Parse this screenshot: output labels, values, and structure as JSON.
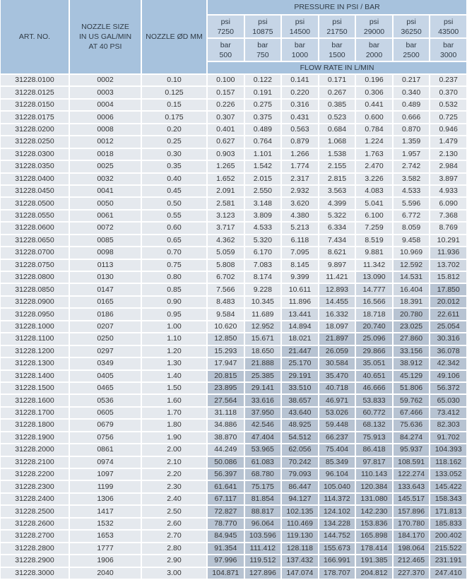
{
  "header": {
    "art_no": "ART. NO.",
    "nozzle_size": "NOZZLE SIZE IN US GAL/MIN AT 40 PSI",
    "nozzle_diameter": "NOZZLE ØD MM",
    "pressure": "PRESSURE IN PSI / BAR",
    "flow_rate": "FLOW RATE IN L/MIN",
    "psi_label": "psi",
    "bar_label": "bar",
    "psi_values": [
      "7250",
      "10875",
      "14500",
      "21750",
      "29000",
      "36250",
      "43500"
    ],
    "bar_values": [
      "500",
      "750",
      "1000",
      "1500",
      "2000",
      "2500",
      "3000"
    ]
  },
  "rows": [
    [
      "31228.0100",
      "0002",
      "0.10",
      "0.100",
      "0.122",
      "0.141",
      "0.171",
      "0.196",
      "0.217",
      "0.237"
    ],
    [
      "31228.0125",
      "0003",
      "0.125",
      "0.157",
      "0.191",
      "0.220",
      "0.267",
      "0.306",
      "0.340",
      "0.370"
    ],
    [
      "31228.0150",
      "0004",
      "0.15",
      "0.226",
      "0.275",
      "0.316",
      "0.385",
      "0.441",
      "0.489",
      "0.532"
    ],
    [
      "31228.0175",
      "0006",
      "0.175",
      "0.307",
      "0.375",
      "0.431",
      "0.523",
      "0.600",
      "0.666",
      "0.725"
    ],
    [
      "31228.0200",
      "0008",
      "0.20",
      "0.401",
      "0.489",
      "0.563",
      "0.684",
      "0.784",
      "0.870",
      "0.946"
    ],
    [
      "31228.0250",
      "0012",
      "0.25",
      "0.627",
      "0.764",
      "0.879",
      "1.068",
      "1.224",
      "1.359",
      "1.479"
    ],
    [
      "31228.0300",
      "0018",
      "0.30",
      "0.903",
      "1.101",
      "1.266",
      "1.538",
      "1.763",
      "1.957",
      "2.130"
    ],
    [
      "31228.0350",
      "0025",
      "0.35",
      "1.265",
      "1.542",
      "1.774",
      "2.155",
      "2.470",
      "2.742",
      "2.984"
    ],
    [
      "31228.0400",
      "0032",
      "0.40",
      "1.652",
      "2.015",
      "2.317",
      "2.815",
      "3.226",
      "3.582",
      "3.897"
    ],
    [
      "31228.0450",
      "0041",
      "0.45",
      "2.091",
      "2.550",
      "2.932",
      "3.563",
      "4.083",
      "4.533",
      "4.933"
    ],
    [
      "31228.0500",
      "0050",
      "0.50",
      "2.581",
      "3.148",
      "3.620",
      "4.399",
      "5.041",
      "5.596",
      "6.090"
    ],
    [
      "31228.0550",
      "0061",
      "0.55",
      "3.123",
      "3.809",
      "4.380",
      "5.322",
      "6.100",
      "6.772",
      "7.368"
    ],
    [
      "31228.0600",
      "0072",
      "0.60",
      "3.717",
      "4.533",
      "5.213",
      "6.334",
      "7.259",
      "8.059",
      "8.769"
    ],
    [
      "31228.0650",
      "0085",
      "0.65",
      "4.362",
      "5.320",
      "6.118",
      "7.434",
      "8.519",
      "9.458",
      "10.291"
    ],
    [
      "31228.0700",
      "0098",
      "0.70",
      "5.059",
      "6.170",
      "7.095",
      "8.621",
      "9.881",
      "10.969",
      "11.936"
    ],
    [
      "31228.0750",
      "0113",
      "0.75",
      "5.808",
      "7.083",
      "8.145",
      "9.897",
      "11.342",
      "12.592",
      "13.702"
    ],
    [
      "31228.0800",
      "0130",
      "0.80",
      "6.702",
      "8.174",
      "9.399",
      "11.421",
      "13.090",
      "14.531",
      "15.812"
    ],
    [
      "31228.0850",
      "0147",
      "0.85",
      "7.566",
      "9.228",
      "10.611",
      "12.893",
      "14.777",
      "16.404",
      "17.850"
    ],
    [
      "31228.0900",
      "0165",
      "0.90",
      "8.483",
      "10.345",
      "11.896",
      "14.455",
      "16.566",
      "18.391",
      "20.012"
    ],
    [
      "31228.0950",
      "0186",
      "0.95",
      "9.584",
      "11.689",
      "13.441",
      "16.332",
      "18.718",
      "20.780",
      "22.611"
    ],
    [
      "31228.1000",
      "0207",
      "1.00",
      "10.620",
      "12.952",
      "14.894",
      "18.097",
      "20.740",
      "23.025",
      "25.054"
    ],
    [
      "31228.1100",
      "0250",
      "1.10",
      "12.850",
      "15.671",
      "18.021",
      "21.897",
      "25.096",
      "27.860",
      "30.316"
    ],
    [
      "31228.1200",
      "0297",
      "1.20",
      "15.293",
      "18.650",
      "21.447",
      "26.059",
      "29.866",
      "33.156",
      "36.078"
    ],
    [
      "31228.1300",
      "0349",
      "1.30",
      "17.947",
      "21.888",
      "25.170",
      "30.584",
      "35.051",
      "38.912",
      "42.342"
    ],
    [
      "31228.1400",
      "0405",
      "1.40",
      "20.815",
      "25.385",
      "29.191",
      "35.470",
      "40.651",
      "45.129",
      "49.106"
    ],
    [
      "31228.1500",
      "0465",
      "1.50",
      "23.895",
      "29.141",
      "33.510",
      "40.718",
      "46.666",
      "51.806",
      "56.372"
    ],
    [
      "31228.1600",
      "0536",
      "1.60",
      "27.564",
      "33.616",
      "38.657",
      "46.971",
      "53.833",
      "59.762",
      "65.030"
    ],
    [
      "31228.1700",
      "0605",
      "1.70",
      "31.118",
      "37.950",
      "43.640",
      "53.026",
      "60.772",
      "67.466",
      "73.412"
    ],
    [
      "31228.1800",
      "0679",
      "1.80",
      "34.886",
      "42.546",
      "48.925",
      "59.448",
      "68.132",
      "75.636",
      "82.303"
    ],
    [
      "31228.1900",
      "0756",
      "1.90",
      "38.870",
      "47.404",
      "54.512",
      "66.237",
      "75.913",
      "84.274",
      "91.702"
    ],
    [
      "31228.2000",
      "0861",
      "2.00",
      "44.249",
      "53.965",
      "62.056",
      "75.404",
      "86.418",
      "95.937",
      "104.393"
    ],
    [
      "31228.2100",
      "0974",
      "2.10",
      "50.086",
      "61.083",
      "70.242",
      "85.349",
      "97.817",
      "108.591",
      "118.162"
    ],
    [
      "31228.2200",
      "1097",
      "2.20",
      "56.397",
      "68.780",
      "79.093",
      "96.104",
      "110.143",
      "122.274",
      "133.052"
    ],
    [
      "31228.2300",
      "1199",
      "2.30",
      "61.641",
      "75.175",
      "86.447",
      "105.040",
      "120.384",
      "133.643",
      "145.422"
    ],
    [
      "31228.2400",
      "1306",
      "2.40",
      "67.117",
      "81.854",
      "94.127",
      "114.372",
      "131.080",
      "145.517",
      "158.343"
    ],
    [
      "31228.2500",
      "1417",
      "2.50",
      "72.827",
      "88.817",
      "102.135",
      "124.102",
      "142.230",
      "157.896",
      "171.813"
    ],
    [
      "31228.2600",
      "1532",
      "2.60",
      "78.770",
      "96.064",
      "110.469",
      "134.228",
      "153.836",
      "170.780",
      "185.833"
    ],
    [
      "31228.2700",
      "1653",
      "2.70",
      "84.945",
      "103.596",
      "119.130",
      "144.752",
      "165.898",
      "184.170",
      "200.402"
    ],
    [
      "31228.2800",
      "1777",
      "2.80",
      "91.354",
      "111.412",
      "128.118",
      "155.673",
      "178.414",
      "198.064",
      "215.522"
    ],
    [
      "31228.2900",
      "1906",
      "2.90",
      "97.996",
      "119.512",
      "137.432",
      "166.991",
      "191.385",
      "212.465",
      "231.191"
    ],
    [
      "31228.3000",
      "2040",
      "3.00",
      "104.871",
      "127.896",
      "147.074",
      "178.707",
      "204.812",
      "227.370",
      "247.410"
    ]
  ],
  "colors": {
    "header": "#a7c2dd",
    "subheader": "#c6d5e6",
    "cell": "#e5e9ee",
    "cell_mid": "#d0d8e2",
    "cell_dark": "#b7c3d2"
  }
}
